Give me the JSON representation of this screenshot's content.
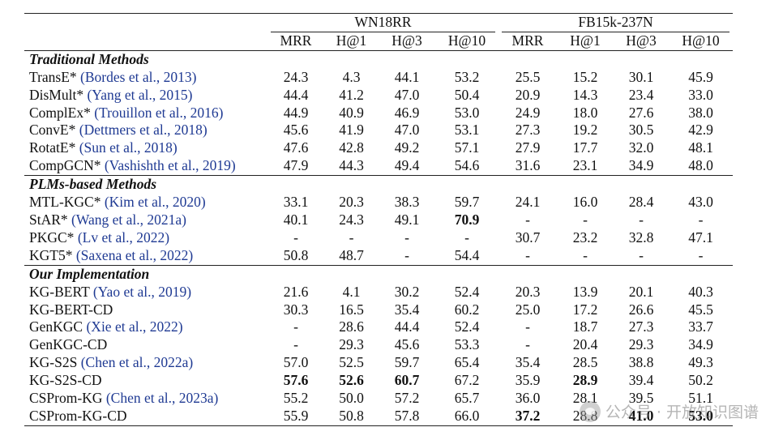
{
  "header": {
    "groups": [
      "WN18RR",
      "FB15k-237N"
    ],
    "metrics": [
      "MRR",
      "H@1",
      "H@3",
      "H@10",
      "MRR",
      "H@1",
      "H@3",
      "H@10"
    ]
  },
  "sections": [
    {
      "title": "Traditional Methods",
      "rows": [
        {
          "name": "TransE*",
          "cite": "(Bordes et al., 2013)",
          "values": [
            "24.3",
            "4.3",
            "44.1",
            "53.2",
            "25.5",
            "15.2",
            "30.1",
            "45.9"
          ],
          "bold": []
        },
        {
          "name": "DisMult*",
          "cite": "(Yang et al., 2015)",
          "values": [
            "44.4",
            "41.2",
            "47.0",
            "50.4",
            "20.9",
            "14.3",
            "23.4",
            "33.0"
          ],
          "bold": []
        },
        {
          "name": "ComplEx*",
          "cite": "(Trouillon et al., 2016)",
          "values": [
            "44.9",
            "40.9",
            "46.9",
            "53.0",
            "24.9",
            "18.0",
            "27.6",
            "38.0"
          ],
          "bold": []
        },
        {
          "name": "ConvE*",
          "cite": "(Dettmers et al., 2018)",
          "values": [
            "45.6",
            "41.9",
            "47.0",
            "53.1",
            "27.3",
            "19.2",
            "30.5",
            "42.9"
          ],
          "bold": []
        },
        {
          "name": "RotatE*",
          "cite": "(Sun et al., 2018)",
          "values": [
            "47.6",
            "42.8",
            "49.2",
            "57.1",
            "27.9",
            "17.7",
            "32.0",
            "48.1"
          ],
          "bold": []
        },
        {
          "name": "CompGCN*",
          "cite": "(Vashishth et al., 2019)",
          "values": [
            "47.9",
            "44.3",
            "49.4",
            "54.6",
            "31.6",
            "23.1",
            "34.9",
            "48.0"
          ],
          "bold": []
        }
      ]
    },
    {
      "title": "PLMs-based Methods",
      "rows": [
        {
          "name": "MTL-KGC*",
          "cite": "(Kim et al., 2020)",
          "values": [
            "33.1",
            "20.3",
            "38.3",
            "59.7",
            "24.1",
            "16.0",
            "28.4",
            "43.0"
          ],
          "bold": []
        },
        {
          "name": "StAR*",
          "cite": "(Wang et al., 2021a)",
          "values": [
            "40.1",
            "24.3",
            "49.1",
            "70.9",
            "-",
            "-",
            "-",
            "-"
          ],
          "bold": [
            3
          ]
        },
        {
          "name": "PKGC*",
          "cite": "(Lv et al., 2022)",
          "values": [
            "-",
            "-",
            "-",
            "-",
            "30.7",
            "23.2",
            "32.8",
            "47.1"
          ],
          "bold": []
        },
        {
          "name": "KGT5*",
          "cite": "(Saxena et al., 2022)",
          "values": [
            "50.8",
            "48.7",
            "-",
            "54.4",
            "-",
            "-",
            "-",
            "-"
          ],
          "bold": []
        }
      ]
    },
    {
      "title": "Our Implementation",
      "rows": [
        {
          "name": "KG-BERT",
          "cite": "(Yao et al., 2019)",
          "values": [
            "21.6",
            "4.1",
            "30.2",
            "52.4",
            "20.3",
            "13.9",
            "20.1",
            "40.3"
          ],
          "bold": []
        },
        {
          "name": "KG-BERT-CD",
          "cite": "",
          "values": [
            "30.3",
            "16.5",
            "35.4",
            "60.2",
            "25.0",
            "17.2",
            "26.6",
            "45.5"
          ],
          "bold": []
        },
        {
          "name": "GenKGC",
          "cite": "(Xie et al., 2022)",
          "values": [
            "-",
            "28.6",
            "44.4",
            "52.4",
            "-",
            "18.7",
            "27.3",
            "33.7"
          ],
          "bold": []
        },
        {
          "name": "GenKGC-CD",
          "cite": "",
          "values": [
            "-",
            "29.3",
            "45.6",
            "53.3",
            "-",
            "20.4",
            "29.3",
            "34.9"
          ],
          "bold": []
        },
        {
          "name": "KG-S2S",
          "cite": "(Chen et al., 2022a)",
          "values": [
            "57.0",
            "52.5",
            "59.7",
            "65.4",
            "35.4",
            "28.5",
            "38.8",
            "49.3"
          ],
          "bold": []
        },
        {
          "name": "KG-S2S-CD",
          "cite": "",
          "values": [
            "57.6",
            "52.6",
            "60.7",
            "67.2",
            "35.9",
            "28.9",
            "39.4",
            "50.2"
          ],
          "bold": [
            0,
            1,
            2,
            5
          ]
        },
        {
          "name": "CSProm-KG",
          "cite": "(Chen et al., 2023a)",
          "values": [
            "55.2",
            "50.0",
            "57.2",
            "65.7",
            "36.0",
            "28.1",
            "39.5",
            "51.1"
          ],
          "bold": []
        },
        {
          "name": "CSProm-KG-CD",
          "cite": "",
          "values": [
            "55.9",
            "50.8",
            "57.8",
            "66.0",
            "37.2",
            "28.8",
            "41.0",
            "53.0"
          ],
          "bold": [
            4,
            6,
            7
          ]
        }
      ]
    }
  ],
  "watermark": {
    "text": "公众号 · 开放知识图谱",
    "icon": "wechat-icon"
  }
}
